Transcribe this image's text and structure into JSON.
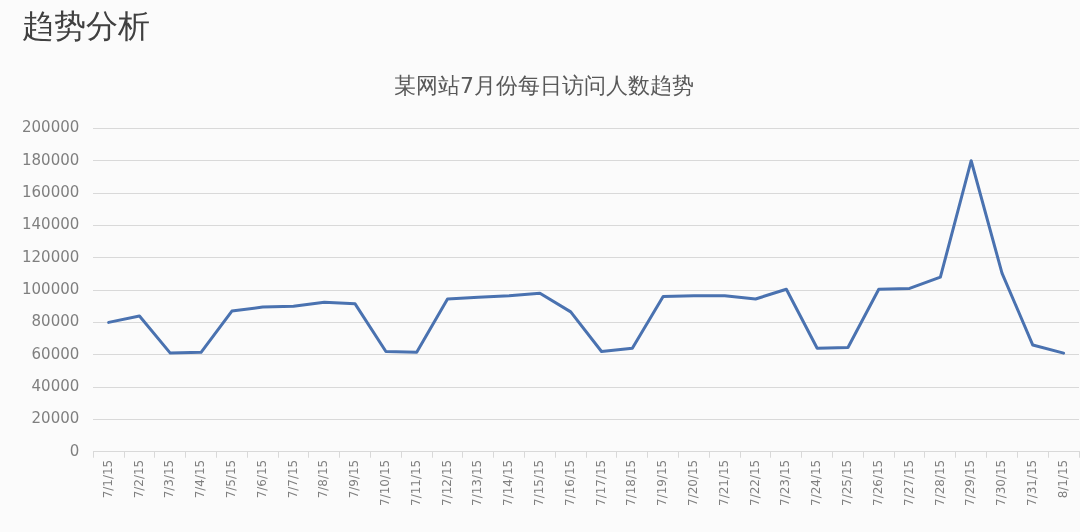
{
  "chart_data": {
    "type": "line",
    "title": "趋势分析",
    "subtitle": "某网站7月份每日访问人数趋势",
    "categories": [
      "7/1/15",
      "7/2/15",
      "7/3/15",
      "7/4/15",
      "7/5/15",
      "7/6/15",
      "7/7/15",
      "7/8/15",
      "7/9/15",
      "7/10/15",
      "7/11/15",
      "7/12/15",
      "7/13/15",
      "7/14/15",
      "7/15/15",
      "7/16/15",
      "7/17/15",
      "7/18/15",
      "7/19/15",
      "7/20/15",
      "7/21/15",
      "7/22/15",
      "7/23/15",
      "7/24/15",
      "7/25/15",
      "7/26/15",
      "7/27/15",
      "7/28/15",
      "7/29/15",
      "7/30/15",
      "7/31/15",
      "8/1/15"
    ],
    "series": [
      {
        "color": "#4a72b0",
        "values": [
          80000,
          84000,
          61000,
          61500,
          87000,
          89500,
          90000,
          92500,
          91500,
          62000,
          61500,
          94500,
          95500,
          96500,
          98000,
          86500,
          62000,
          64000,
          96000,
          96500,
          96500,
          94500,
          100500,
          64000,
          64500,
          100500,
          101000,
          108000,
          180000,
          110500,
          66000,
          61000
        ]
      }
    ],
    "ylim": [
      0,
      200000
    ],
    "yticks": [
      0,
      20000,
      40000,
      60000,
      80000,
      100000,
      120000,
      140000,
      160000,
      180000,
      200000
    ],
    "grid": "y",
    "marker": "none",
    "line_style": "solid"
  }
}
